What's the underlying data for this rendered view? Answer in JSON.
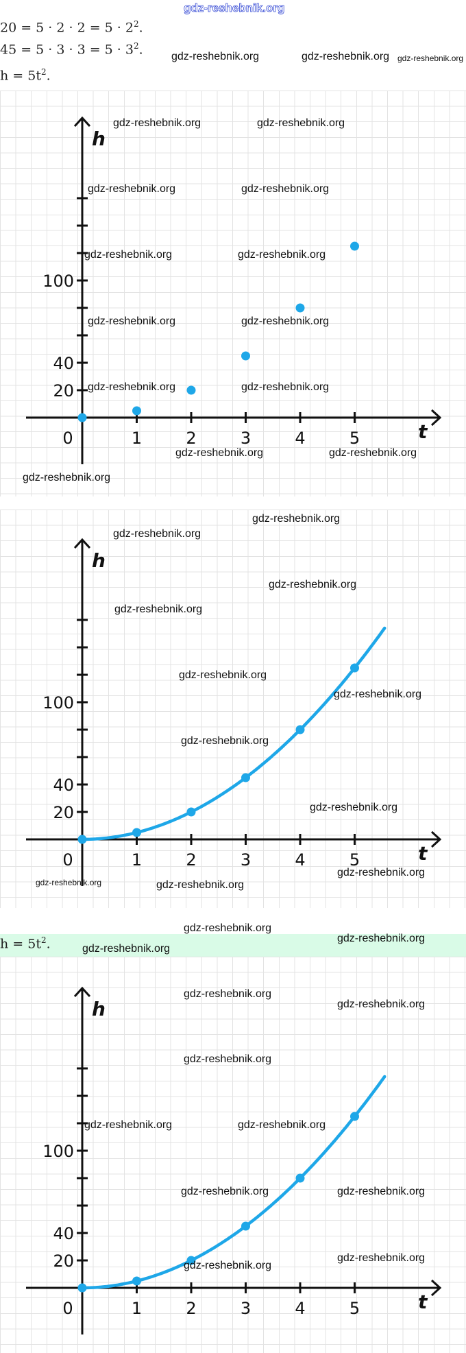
{
  "header": {
    "watermark": "gdz-reshebnik.org"
  },
  "math_lines": [
    {
      "text": "20 = 5 · 2 · 2 = 5 · 2",
      "sup": "2",
      "end": "."
    },
    {
      "text": "45 = 5 · 3 · 3 = 5 · 3",
      "sup": "2",
      "end": "."
    },
    {
      "text": "h = 5t",
      "sup": "2",
      "end": "."
    }
  ],
  "answer": {
    "text": "h = 5t",
    "sup": "2",
    "end": "."
  },
  "colors": {
    "series": "#1ea7e8",
    "axis": "#111111",
    "answer_band": "#d9fbe7"
  },
  "chart_data": [
    {
      "type": "scatter",
      "xlabel": "t",
      "ylabel": "h",
      "x_ticks": [
        "0",
        "1",
        "2",
        "3",
        "4",
        "5"
      ],
      "y_tick_labels": [
        "20",
        "40",
        "100"
      ],
      "y_tick_values": [
        20,
        40,
        60,
        80,
        100,
        120,
        140,
        160
      ],
      "xlim": [
        0,
        5.5
      ],
      "ylim": [
        0,
        160
      ],
      "points": [
        {
          "t": 0,
          "h": 0
        },
        {
          "t": 1,
          "h": 5
        },
        {
          "t": 2,
          "h": 20
        },
        {
          "t": 3,
          "h": 45
        },
        {
          "t": 4,
          "h": 80
        },
        {
          "t": 5,
          "h": 125
        }
      ],
      "curve": false
    },
    {
      "type": "line",
      "xlabel": "t",
      "ylabel": "h",
      "x_ticks": [
        "0",
        "1",
        "2",
        "3",
        "4",
        "5"
      ],
      "y_tick_labels": [
        "20",
        "40",
        "100"
      ],
      "y_tick_values": [
        20,
        40,
        60,
        80,
        100,
        120,
        140,
        160
      ],
      "xlim": [
        0,
        5.5
      ],
      "ylim": [
        0,
        160
      ],
      "points": [
        {
          "t": 0,
          "h": 0
        },
        {
          "t": 1,
          "h": 5
        },
        {
          "t": 2,
          "h": 20
        },
        {
          "t": 3,
          "h": 45
        },
        {
          "t": 4,
          "h": 80
        },
        {
          "t": 5,
          "h": 125
        }
      ],
      "curve": true,
      "curve_end_t": 5.55
    },
    {
      "type": "line",
      "xlabel": "t",
      "ylabel": "h",
      "x_ticks": [
        "0",
        "1",
        "2",
        "3",
        "4",
        "5"
      ],
      "y_tick_labels": [
        "20",
        "40",
        "100"
      ],
      "y_tick_values": [
        20,
        40,
        60,
        80,
        100,
        120,
        140,
        160
      ],
      "xlim": [
        0,
        5.5
      ],
      "ylim": [
        0,
        160
      ],
      "points": [
        {
          "t": 0,
          "h": 0
        },
        {
          "t": 1,
          "h": 5
        },
        {
          "t": 2,
          "h": 20
        },
        {
          "t": 3,
          "h": 45
        },
        {
          "t": 4,
          "h": 80
        },
        {
          "t": 5,
          "h": 125
        }
      ],
      "curve": true,
      "curve_end_t": 5.55
    }
  ]
}
